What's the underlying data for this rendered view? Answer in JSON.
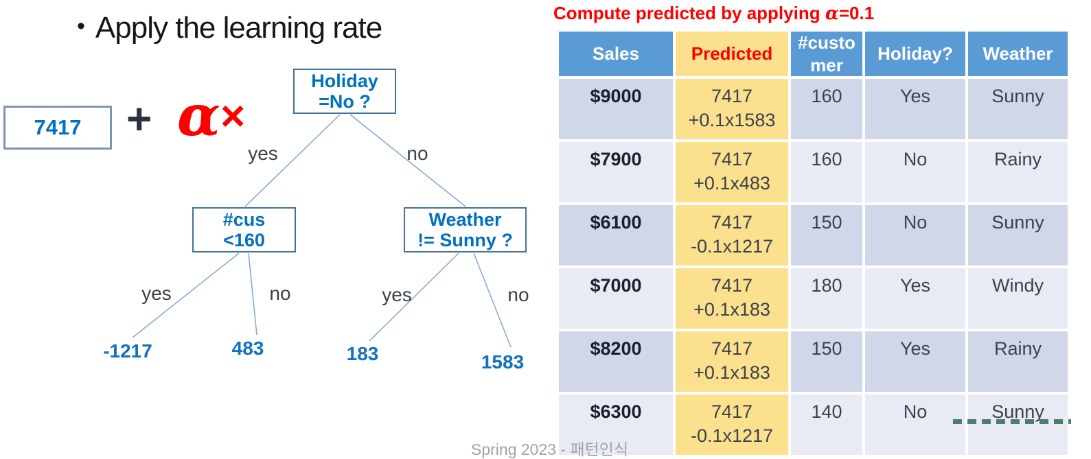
{
  "heading": {
    "bullet": "•",
    "text": "Apply the learning rate"
  },
  "expression": {
    "base_value": "7417",
    "plus": "+",
    "alpha": "α",
    "times": "×"
  },
  "tree": {
    "root": {
      "line1": "Holiday",
      "line2": "=No ?"
    },
    "left": {
      "line1": "#cus",
      "line2": "<160"
    },
    "right": {
      "line1": "Weather",
      "line2": "!= Sunny ?"
    },
    "labels": {
      "root_yes": "yes",
      "root_no": "no",
      "left_yes": "yes",
      "left_no": "no",
      "right_yes": "yes",
      "right_no": "no"
    },
    "leaves": {
      "left_yes": "-1217",
      "left_no": "483",
      "right_yes": "183",
      "right_no": "1583"
    }
  },
  "table_title": {
    "prefix": "Compute predicted by applying ",
    "alpha": "α",
    "suffix": "=0.1"
  },
  "table": {
    "columns": [
      "Sales",
      "Predicted",
      "#customer",
      "Holiday?",
      "Weather"
    ],
    "rows": [
      {
        "sales": "$9000",
        "predicted_base": "7417",
        "predicted_adjust": "+0.1x1583",
        "customers": "160",
        "holiday": "Yes",
        "weather": "Sunny"
      },
      {
        "sales": "$7900",
        "predicted_base": "7417",
        "predicted_adjust": "+0.1x483",
        "customers": "160",
        "holiday": "No",
        "weather": "Rainy"
      },
      {
        "sales": "$6100",
        "predicted_base": "7417",
        "predicted_adjust": "-0.1x1217",
        "customers": "150",
        "holiday": "No",
        "weather": "Sunny"
      },
      {
        "sales": "$7000",
        "predicted_base": "7417",
        "predicted_adjust": "+0.1x183",
        "customers": "180",
        "holiday": "Yes",
        "weather": "Windy"
      },
      {
        "sales": "$8200",
        "predicted_base": "7417",
        "predicted_adjust": "+0.1x183",
        "customers": "150",
        "holiday": "Yes",
        "weather": "Rainy"
      },
      {
        "sales": "$6300",
        "predicted_base": "7417",
        "predicted_adjust": "-0.1x1217",
        "customers": "140",
        "holiday": "No",
        "weather": "Sunny"
      }
    ]
  },
  "footer": {
    "text": "Spring 2023 - 패턴인식"
  },
  "colors": {
    "header_blue": "#5b9bd5",
    "predicted_yellow": "#fbe08d",
    "band_dark": "#cfd7e8",
    "band_light": "#e9ebf4",
    "accent_red": "#ff0000",
    "node_text_blue": "#0070c0",
    "node_border_blue": "#41719c",
    "edge_blue": "#7ea6d9",
    "watermark_green": "#33675b"
  }
}
